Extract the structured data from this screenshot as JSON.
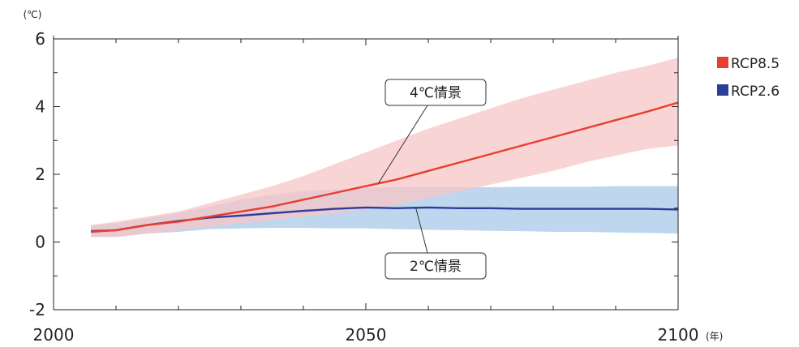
{
  "chart_data": {
    "type": "area",
    "y_unit": "(℃)",
    "x_unit": "(年)",
    "xlim": [
      2000,
      2100
    ],
    "ylim": [
      -2,
      6
    ],
    "x_ticks": [
      "2000",
      "2050",
      "2100"
    ],
    "y_ticks": [
      "-2",
      "0",
      "2",
      "4",
      "6"
    ],
    "x_minor_step": 10,
    "y_minor_step": 1,
    "grid": false,
    "legend_position": "right",
    "series": [
      {
        "name": "RCP8.5",
        "color": "#e83e30",
        "band_color": "#f6c5c5",
        "x": [
          2006,
          2010,
          2015,
          2020,
          2025,
          2030,
          2035,
          2040,
          2045,
          2050,
          2055,
          2060,
          2065,
          2070,
          2075,
          2080,
          2085,
          2090,
          2095,
          2100
        ],
        "mean": [
          0.3,
          0.35,
          0.5,
          0.6,
          0.75,
          0.9,
          1.05,
          1.25,
          1.45,
          1.65,
          1.85,
          2.1,
          2.35,
          2.6,
          2.85,
          3.1,
          3.35,
          3.6,
          3.85,
          4.12
        ],
        "upper": [
          0.5,
          0.6,
          0.75,
          0.9,
          1.15,
          1.4,
          1.65,
          1.95,
          2.3,
          2.65,
          3.0,
          3.35,
          3.65,
          3.95,
          4.25,
          4.5,
          4.75,
          5.0,
          5.2,
          5.45
        ],
        "lower": [
          0.15,
          0.15,
          0.25,
          0.35,
          0.45,
          0.55,
          0.65,
          0.75,
          0.85,
          0.95,
          1.1,
          1.3,
          1.5,
          1.7,
          1.9,
          2.1,
          2.35,
          2.55,
          2.75,
          2.85
        ]
      },
      {
        "name": "RCP2.6",
        "color": "#2d3d9a",
        "band_color": "#b7d1ec",
        "x": [
          2006,
          2010,
          2015,
          2020,
          2025,
          2030,
          2035,
          2040,
          2045,
          2050,
          2055,
          2060,
          2065,
          2070,
          2075,
          2080,
          2085,
          2090,
          2095,
          2100
        ],
        "mean": [
          0.32,
          0.35,
          0.5,
          0.62,
          0.72,
          0.78,
          0.85,
          0.92,
          0.98,
          1.02,
          1.0,
          1.02,
          1.0,
          1.0,
          0.98,
          0.98,
          0.98,
          0.98,
          0.98,
          0.96
        ],
        "upper": [
          0.5,
          0.55,
          0.7,
          0.85,
          1.05,
          1.25,
          1.4,
          1.5,
          1.55,
          1.6,
          1.62,
          1.62,
          1.62,
          1.62,
          1.63,
          1.63,
          1.63,
          1.65,
          1.65,
          1.65
        ],
        "lower": [
          0.15,
          0.15,
          0.25,
          0.3,
          0.38,
          0.4,
          0.42,
          0.42,
          0.4,
          0.4,
          0.38,
          0.36,
          0.35,
          0.33,
          0.32,
          0.3,
          0.3,
          0.28,
          0.27,
          0.25
        ]
      }
    ],
    "annotations": [
      {
        "text": "4℃情景",
        "series": "RCP8.5",
        "anchor_x": 2052
      },
      {
        "text": "2℃情景",
        "series": "RCP2.6",
        "anchor_x": 2058
      }
    ]
  }
}
